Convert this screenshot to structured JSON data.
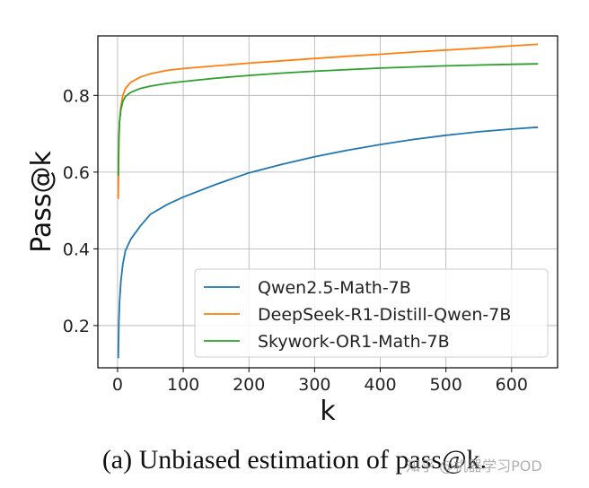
{
  "caption": "(a) Unbiased estimation of pass@k.",
  "watermark": "知乎 @机器学习POD",
  "chart_data": {
    "type": "line",
    "title": "",
    "xlabel": "k",
    "ylabel": "Pass@k",
    "xlim": [
      -30,
      670
    ],
    "ylim": [
      0.09,
      0.955
    ],
    "xticks": [
      0,
      100,
      200,
      300,
      400,
      500,
      600
    ],
    "yticks": [
      0.2,
      0.4,
      0.6,
      0.8
    ],
    "grid": true,
    "legend_position": "lower-right",
    "series": [
      {
        "name": "Qwen2.5-Math-7B",
        "color": "#1f77b4",
        "x": [
          1,
          2,
          3,
          5,
          8,
          12,
          20,
          35,
          50,
          75,
          100,
          150,
          200,
          250,
          300,
          350,
          400,
          450,
          500,
          550,
          600,
          640
        ],
        "y": [
          0.115,
          0.21,
          0.26,
          0.315,
          0.36,
          0.395,
          0.425,
          0.46,
          0.49,
          0.515,
          0.535,
          0.568,
          0.598,
          0.62,
          0.64,
          0.657,
          0.672,
          0.685,
          0.696,
          0.705,
          0.712,
          0.717
        ]
      },
      {
        "name": "DeepSeek-R1-Distill-Qwen-7B",
        "color": "#ff7f0e",
        "x": [
          1,
          2,
          3,
          5,
          8,
          12,
          20,
          35,
          50,
          75,
          100,
          150,
          200,
          250,
          300,
          350,
          400,
          450,
          500,
          550,
          600,
          640
        ],
        "y": [
          0.53,
          0.68,
          0.73,
          0.77,
          0.8,
          0.818,
          0.834,
          0.848,
          0.856,
          0.865,
          0.87,
          0.877,
          0.884,
          0.89,
          0.896,
          0.902,
          0.907,
          0.913,
          0.918,
          0.923,
          0.929,
          0.933
        ]
      },
      {
        "name": "Skywork-OR1-Math-7B",
        "color": "#2ca02c",
        "x": [
          1,
          2,
          3,
          5,
          8,
          12,
          20,
          35,
          50,
          75,
          100,
          150,
          200,
          250,
          300,
          350,
          400,
          450,
          500,
          550,
          600,
          640
        ],
        "y": [
          0.59,
          0.69,
          0.73,
          0.762,
          0.784,
          0.797,
          0.808,
          0.818,
          0.824,
          0.831,
          0.836,
          0.845,
          0.852,
          0.858,
          0.863,
          0.867,
          0.871,
          0.874,
          0.877,
          0.879,
          0.881,
          0.882
        ]
      }
    ]
  }
}
